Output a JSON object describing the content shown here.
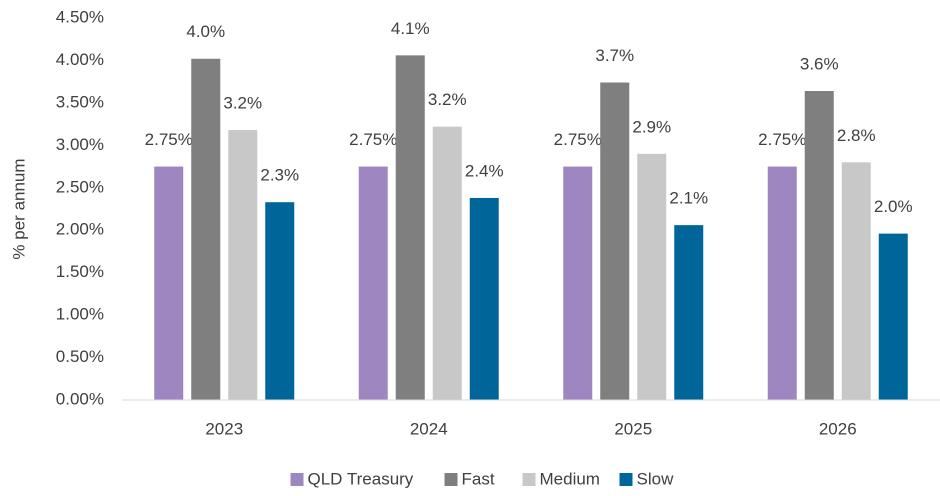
{
  "chart_data": {
    "type": "bar",
    "y_label": "% per annum",
    "categories": [
      "2023",
      "2024",
      "2025",
      "2026"
    ],
    "series": [
      {
        "name": "QLD Treasury",
        "color": "#9e86c0",
        "values": [
          2.75,
          2.75,
          2.75,
          2.75
        ],
        "value_labels": [
          "2.75%",
          "2.75%",
          "2.75%",
          "2.75%"
        ]
      },
      {
        "name": "Fast",
        "color": "#7f7f7f",
        "values": [
          4.02,
          4.06,
          3.74,
          3.64
        ],
        "value_labels": [
          "4.0%",
          "4.1%",
          "3.7%",
          "3.6%"
        ]
      },
      {
        "name": "Medium",
        "color": "#c8c8c8",
        "values": [
          3.18,
          3.22,
          2.9,
          2.8
        ],
        "value_labels": [
          "3.2%",
          "3.2%",
          "2.9%",
          "2.8%"
        ]
      },
      {
        "name": "Slow",
        "color": "#006699",
        "values": [
          2.33,
          2.38,
          2.06,
          1.96
        ],
        "value_labels": [
          "2.3%",
          "2.4%",
          "2.1%",
          "2.0%"
        ]
      }
    ],
    "ylim": [
      0,
      4.5
    ],
    "yticks": [
      {
        "value": 0,
        "label": "0.00%"
      },
      {
        "value": 0.5,
        "label": "0.50%"
      },
      {
        "value": 1,
        "label": "1.00%"
      },
      {
        "value": 1.5,
        "label": "1.50%"
      },
      {
        "value": 2,
        "label": "2.00%"
      },
      {
        "value": 2.5,
        "label": "2.50%"
      },
      {
        "value": 3,
        "label": "3.00%"
      },
      {
        "value": 3.5,
        "label": "3.50%"
      },
      {
        "value": 4,
        "label": "4.00%"
      },
      {
        "value": 4.5,
        "label": "4.50%"
      }
    ],
    "grid": false,
    "legend": "bottom"
  }
}
